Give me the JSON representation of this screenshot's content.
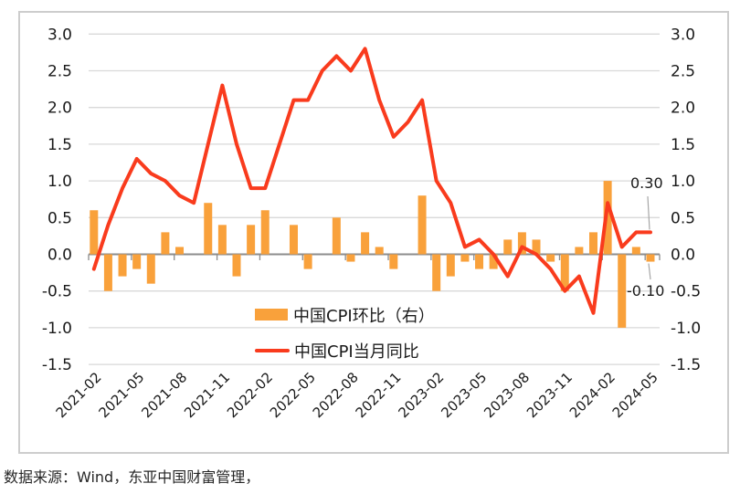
{
  "source_note": "数据来源：Wind，东亚中国财富管理，",
  "chart_data": {
    "type": "bar",
    "subtype": "bar+line combo, dual axis (same scale both sides)",
    "title": "",
    "xlabel": "",
    "ylabel": "",
    "ylim": [
      -1.5,
      3.0
    ],
    "grid": true,
    "legend_position": "inside-bottom-center",
    "y_ticks": [
      "3.0",
      "2.5",
      "2.0",
      "1.5",
      "1.0",
      "0.5",
      "0.0",
      "-0.5",
      "-1.0",
      "-1.5"
    ],
    "x": [
      "2021-02",
      "2021-03",
      "2021-04",
      "2021-05",
      "2021-06",
      "2021-07",
      "2021-08",
      "2021-09",
      "2021-10",
      "2021-11",
      "2021-12",
      "2022-01",
      "2022-02",
      "2022-03",
      "2022-04",
      "2022-05",
      "2022-06",
      "2022-07",
      "2022-08",
      "2022-09",
      "2022-10",
      "2022-11",
      "2022-12",
      "2023-01",
      "2023-02",
      "2023-03",
      "2023-04",
      "2023-05",
      "2023-06",
      "2023-07",
      "2023-08",
      "2023-09",
      "2023-10",
      "2023-11",
      "2023-12",
      "2024-01",
      "2024-02",
      "2024-03",
      "2024-04",
      "2024-05"
    ],
    "x_tick_labels": [
      "2021-02",
      "2021-05",
      "2021-08",
      "2021-11",
      "2022-02",
      "2022-05",
      "2022-08",
      "2022-11",
      "2023-02",
      "2023-05",
      "2023-08",
      "2023-11",
      "2024-02",
      "2024-05"
    ],
    "series": [
      {
        "name": "中国CPI环比（右）",
        "type": "bar",
        "axis": "right",
        "color": "#F9A13B",
        "values": [
          0.6,
          -0.5,
          -0.3,
          -0.2,
          -0.4,
          0.3,
          0.1,
          0.0,
          0.7,
          0.4,
          -0.3,
          0.4,
          0.6,
          0.0,
          0.4,
          -0.2,
          0.0,
          0.5,
          -0.1,
          0.3,
          0.1,
          -0.2,
          0.0,
          0.8,
          -0.5,
          -0.3,
          -0.1,
          -0.2,
          -0.2,
          0.2,
          0.3,
          0.2,
          -0.1,
          -0.5,
          0.1,
          0.3,
          1.0,
          -1.0,
          0.1,
          -0.1
        ]
      },
      {
        "name": "中国CPI当月同比",
        "type": "line",
        "axis": "left",
        "color": "#F93B1D",
        "values": [
          -0.2,
          0.4,
          0.9,
          1.3,
          1.1,
          1.0,
          0.8,
          0.7,
          1.5,
          2.3,
          1.5,
          0.9,
          0.9,
          1.5,
          2.1,
          2.1,
          2.5,
          2.7,
          2.5,
          2.8,
          2.1,
          1.6,
          1.8,
          2.1,
          1.0,
          0.7,
          0.1,
          0.2,
          0.0,
          -0.3,
          0.1,
          0.0,
          -0.2,
          -0.5,
          -0.3,
          -0.8,
          0.7,
          0.1,
          0.3,
          0.3
        ]
      }
    ],
    "annotations": [
      {
        "text": "0.30",
        "series": "中国CPI当月同比",
        "x": "2024-05",
        "value": 0.3
      },
      {
        "text": "-0.10",
        "series": "中国CPI环比（右）",
        "x": "2024-05",
        "value": -0.1
      }
    ]
  }
}
